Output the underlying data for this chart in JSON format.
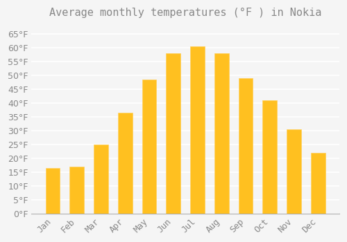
{
  "title": "Average monthly temperatures (°F ) in Nokia",
  "months": [
    "Jan",
    "Feb",
    "Mar",
    "Apr",
    "May",
    "Jun",
    "Jul",
    "Aug",
    "Sep",
    "Oct",
    "Nov",
    "Dec"
  ],
  "values": [
    16.5,
    17.0,
    25.0,
    36.5,
    48.5,
    58.0,
    60.5,
    58.0,
    49.0,
    41.0,
    30.5,
    22.0
  ],
  "bar_color_main": "#FFC020",
  "bar_color_edge": "#FFD060",
  "background_color": "#F5F5F5",
  "grid_color": "#FFFFFF",
  "text_color": "#888888",
  "ylim": [
    0,
    68
  ],
  "yticks": [
    0,
    5,
    10,
    15,
    20,
    25,
    30,
    35,
    40,
    45,
    50,
    55,
    60,
    65
  ],
  "title_fontsize": 11,
  "tick_fontsize": 9
}
